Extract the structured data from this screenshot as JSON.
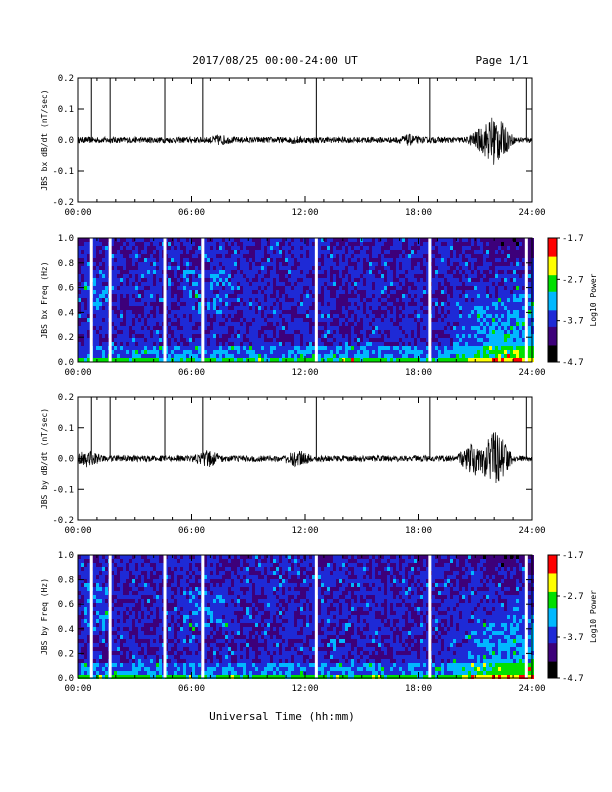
{
  "header": {
    "title": "2017/08/25  00:00-24:00 UT",
    "page": "Page 1/1"
  },
  "xaxis": {
    "label": "Universal Time (hh:mm)",
    "ticks": [
      "00:00",
      "06:00",
      "12:00",
      "18:00",
      "24:00"
    ]
  },
  "colorbar": {
    "label": "Log10 Power",
    "ticks": [
      "-1.7",
      "-2.7",
      "-3.7",
      "-4.7"
    ]
  },
  "chart_data": [
    {
      "type": "line",
      "ylabel": "JBS bx dB/dt (nT/sec)",
      "xlim": [
        0,
        24
      ],
      "ylim": [
        -0.2,
        0.2
      ],
      "yticks": [
        "0.2",
        "0.1",
        "0.0",
        "-0.1",
        "-0.2"
      ],
      "series": [
        {
          "values_description": "noisy signal centred near 0.0, amplitude ~0.02; spikes to 0.2 at 0.7, 1.7, 4.6, 6.6, 12.6, 18.6, 23.7 h; enhanced burst ~0.09 near 22.0 h"
        }
      ],
      "spike_times_h": [
        0.7,
        1.7,
        4.6,
        6.6,
        12.6,
        18.6,
        23.7
      ],
      "activity": [
        [
          7.5,
          0.02
        ],
        [
          11.5,
          0.015
        ],
        [
          17.5,
          0.02
        ],
        [
          21.5,
          0.05
        ],
        [
          22.0,
          0.09
        ]
      ]
    },
    {
      "type": "heatmap",
      "ylabel": "JBS bx Freq (Hz)",
      "xlim": [
        0,
        24
      ],
      "ylim": [
        0.0,
        1.0
      ],
      "yticks": [
        "1.0",
        "0.8",
        "0.6",
        "0.4",
        "0.2",
        "0.0"
      ],
      "zlim": [
        -4.7,
        -1.7
      ],
      "colormap": [
        "#000000",
        "#3d007a",
        "#1e2ad6",
        "#00b8ff",
        "#00e000",
        "#ffff00",
        "#ff0000"
      ],
      "gap_times_h": [
        0.7,
        1.7,
        4.6,
        6.6,
        12.6,
        18.6,
        23.7
      ]
    },
    {
      "type": "line",
      "ylabel": "JBS by dB/dt (nT/sec)",
      "xlim": [
        0,
        24
      ],
      "ylim": [
        -0.2,
        0.2
      ],
      "yticks": [
        "0.2",
        "0.1",
        "0.0",
        "-0.1",
        "-0.2"
      ],
      "series": [
        {
          "values_description": "noisy signal centred near 0.0, amplitude ~0.02; spikes to 0.2 at 0.7, 1.7, 4.6, 6.6, 12.6, 18.6, 23.7 h; enhanced activity ~0.1 near 21.5-22.5 h"
        }
      ],
      "spike_times_h": [
        0.7,
        1.7,
        4.6,
        6.6,
        12.6,
        18.6,
        23.7
      ],
      "activity": [
        [
          0.5,
          0.03
        ],
        [
          6.9,
          0.03
        ],
        [
          11.6,
          0.03
        ],
        [
          21.0,
          0.06
        ],
        [
          22.0,
          0.1
        ]
      ]
    },
    {
      "type": "heatmap",
      "ylabel": "JBS by Freq (Hz)",
      "xlim": [
        0,
        24
      ],
      "ylim": [
        0.0,
        1.0
      ],
      "yticks": [
        "1.0",
        "0.8",
        "0.6",
        "0.4",
        "0.2",
        "0.0"
      ],
      "zlim": [
        -4.7,
        -1.7
      ],
      "colormap": [
        "#000000",
        "#3d007a",
        "#1e2ad6",
        "#00b8ff",
        "#00e000",
        "#ffff00",
        "#ff0000"
      ],
      "gap_times_h": [
        0.7,
        1.7,
        4.6,
        6.6,
        12.6,
        18.6,
        23.7
      ]
    }
  ]
}
